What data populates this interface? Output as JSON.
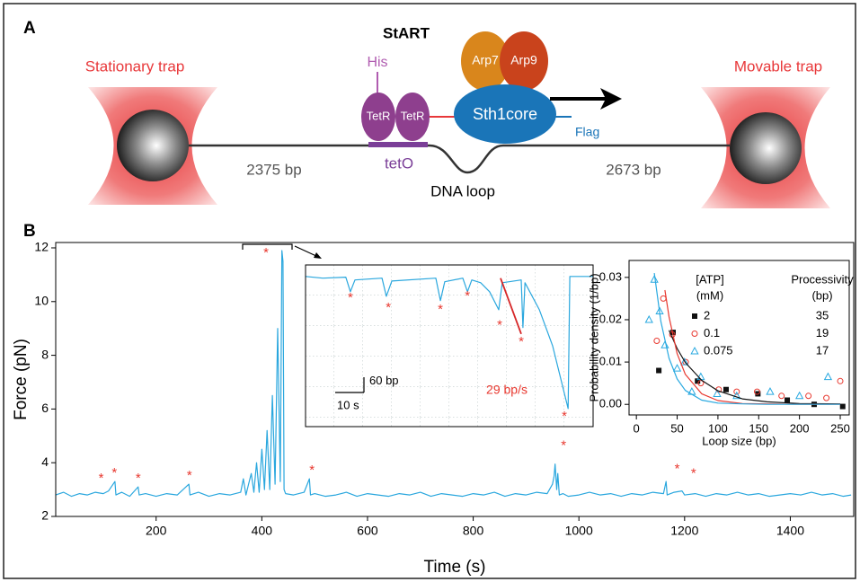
{
  "panel_a": {
    "label": "A",
    "title": "StART",
    "his": "His",
    "tetr_left": "TetR",
    "tetr_right": "TetR",
    "sth1": "Sth1core",
    "arp7": "Arp7",
    "arp9": "Arp9",
    "flag": "Flag",
    "teto": "tetO",
    "stationary": "Stationary trap",
    "movable": "Movable trap",
    "left_dna": "2375 bp",
    "right_dna": "2673 bp",
    "loop": "DNA loop"
  },
  "panel_b_label": "B",
  "chart_data": [
    {
      "type": "line",
      "xlabel": "Time (s)",
      "ylabel": "Force (pN)",
      "xlim": [
        10,
        1520
      ],
      "ylim": [
        2,
        12.2
      ],
      "xticks": [
        200,
        400,
        600,
        800,
        1000,
        1200,
        1400
      ],
      "yticks": [
        2,
        4,
        6,
        8,
        10,
        12
      ],
      "series": [
        {
          "color": "#2aa7de",
          "x": [
            10,
            25,
            40,
            55,
            70,
            85,
            100,
            110,
            122,
            124,
            135,
            150,
            166,
            168,
            180,
            200,
            220,
            240,
            262,
            264,
            280,
            300,
            320,
            340,
            360,
            365,
            370,
            375,
            380,
            385,
            390,
            395,
            400,
            405,
            410,
            415,
            420,
            425,
            430,
            435,
            438,
            440,
            442,
            445,
            460,
            480,
            490,
            492,
            500,
            520,
            540,
            560,
            580,
            600,
            620,
            640,
            660,
            680,
            700,
            720,
            740,
            760,
            780,
            800,
            820,
            840,
            860,
            880,
            900,
            920,
            940,
            950,
            953,
            955,
            958,
            960,
            963,
            970,
            980,
            1000,
            1020,
            1040,
            1060,
            1080,
            1100,
            1120,
            1140,
            1160,
            1165,
            1167,
            1180,
            1195,
            1200,
            1220,
            1240,
            1260,
            1280,
            1300,
            1320,
            1340,
            1360,
            1380,
            1400,
            1420,
            1440,
            1460,
            1480,
            1500,
            1515
          ],
          "values": [
            2.8,
            2.9,
            2.75,
            2.85,
            2.8,
            2.9,
            2.85,
            2.95,
            3.3,
            2.8,
            2.9,
            2.75,
            3.1,
            2.8,
            2.85,
            2.75,
            2.85,
            2.8,
            3.2,
            2.8,
            2.9,
            2.75,
            2.85,
            2.8,
            2.9,
            3.4,
            2.8,
            3.2,
            3.6,
            2.9,
            4.0,
            2.9,
            4.5,
            3.0,
            5.2,
            3.0,
            6.5,
            3.2,
            9.0,
            3.3,
            11.9,
            11.5,
            3.0,
            2.85,
            2.8,
            2.9,
            3.4,
            2.8,
            2.85,
            2.75,
            2.8,
            2.9,
            2.75,
            2.85,
            2.8,
            2.75,
            2.85,
            2.8,
            2.9,
            2.75,
            2.85,
            2.8,
            2.75,
            2.85,
            2.8,
            2.9,
            2.75,
            2.85,
            2.8,
            2.9,
            2.85,
            3.2,
            3.5,
            3.95,
            3.0,
            3.6,
            2.8,
            2.85,
            2.75,
            2.8,
            2.9,
            2.8,
            2.85,
            2.75,
            2.85,
            2.8,
            2.9,
            2.85,
            3.3,
            2.8,
            2.9,
            2.95,
            2.8,
            2.85,
            2.75,
            2.85,
            2.8,
            2.9,
            2.8,
            2.85,
            2.75,
            2.8,
            2.85,
            2.8,
            2.9,
            2.8,
            2.85,
            2.75,
            2.8
          ]
        }
      ],
      "annotations": [
        {
          "text": "*",
          "x": 96,
          "y": 3.41,
          "color": "#e8382f"
        },
        {
          "text": "*",
          "x": 121,
          "y": 3.6,
          "color": "#e8382f"
        },
        {
          "text": "*",
          "x": 166,
          "y": 3.41,
          "color": "#e8382f"
        },
        {
          "text": "*",
          "x": 263,
          "y": 3.51,
          "color": "#e8382f"
        },
        {
          "text": "*",
          "x": 408,
          "y": 11.8,
          "color": "#e8382f"
        },
        {
          "text": "*",
          "x": 495,
          "y": 3.71,
          "color": "#e8382f"
        },
        {
          "text": "*",
          "x": 971,
          "y": 4.62,
          "color": "#e8382f"
        },
        {
          "text": "*",
          "x": 1186,
          "y": 3.75,
          "color": "#e8382f"
        },
        {
          "text": "*",
          "x": 1217,
          "y": 3.58,
          "color": "#e8382f"
        }
      ]
    },
    {
      "type": "line",
      "xlim": [
        0,
        100
      ],
      "ylim": [
        0,
        635
      ],
      "series": [
        {
          "color": "#2aa7de",
          "x": [
            0,
            6,
            14,
            15.6,
            17.2,
            26.6,
            28.1,
            30,
            45.3,
            46.9,
            48.4,
            54.7,
            56.3,
            57.8,
            60.9,
            64,
            67.2,
            68.4,
            75,
            75.6,
            76.3,
            81.3,
            85.9,
            91.3,
            91.9,
            100
          ],
          "values": [
            590,
            583,
            587,
            530,
            576,
            583,
            512,
            572,
            583,
            495,
            569,
            583,
            530,
            576,
            565,
            530,
            459,
            565,
            576,
            389,
            565,
            459,
            318,
            71,
            590,
            590
          ]
        },
        {
          "color": "#d62728",
          "x": [
            67.8,
            75
          ],
          "values": [
            583,
            364
          ]
        }
      ],
      "scale_bars": [
        {
          "label": "60 bp",
          "value": 60,
          "axis": "y"
        },
        {
          "label": "10 s",
          "value": 10,
          "axis": "x"
        }
      ],
      "annotations": [
        {
          "text": "*",
          "x": 15.6,
          "y": 505,
          "color": "#e8382f"
        },
        {
          "text": "*",
          "x": 28.8,
          "y": 466,
          "color": "#e8382f"
        },
        {
          "text": "*",
          "x": 46.9,
          "y": 459,
          "color": "#e8382f"
        },
        {
          "text": "*",
          "x": 56.3,
          "y": 512,
          "color": "#e8382f"
        },
        {
          "text": "*",
          "x": 67.5,
          "y": 396,
          "color": "#e8382f"
        },
        {
          "text": "*",
          "x": 75,
          "y": 332,
          "color": "#e8382f"
        },
        {
          "text": "*",
          "x": 90,
          "y": 39,
          "color": "#e8382f"
        },
        {
          "text": "29 bp/s",
          "x": 70,
          "y": 141,
          "color": "#e8382f"
        }
      ]
    },
    {
      "type": "scatter",
      "xlabel": "Loop size (bp)",
      "ylabel": "Probability density (1/bp)",
      "xlim": [
        -9,
        261
      ],
      "ylim": [
        -0.0025,
        0.034
      ],
      "xticks": [
        0,
        50,
        100,
        150,
        200,
        250
      ],
      "yticks": [
        {
          "value": 0,
          "label": "0.00"
        },
        {
          "value": 0.01,
          "label": "0.01"
        },
        {
          "value": 0.02,
          "label": "0.02"
        },
        {
          "value": 0.03,
          "label": "0.03"
        }
      ],
      "legend_header": [
        "[ATP]",
        "(mM)",
        "Processivity",
        "(bp)"
      ],
      "series": [
        {
          "name": "2",
          "processivity": 35,
          "marker": "square",
          "color": "#111111",
          "x": [
            27.5,
            45,
            75,
            110,
            149,
            185,
            218,
            253
          ],
          "values": [
            0.008,
            0.017,
            0.0055,
            0.0035,
            0.0025,
            0.001,
            0.0,
            -0.0005
          ]
        },
        {
          "name": "0.1",
          "processivity": 19,
          "marker": "circle",
          "color": "#e8382f",
          "x": [
            25,
            33,
            44,
            60.5,
            79,
            101,
            123,
            148,
            178,
            211,
            233,
            250
          ],
          "values": [
            0.015,
            0.025,
            0.0165,
            0.01,
            0.005,
            0.0035,
            0.003,
            0.003,
            0.002,
            0.002,
            0.0015,
            0.0055
          ]
        },
        {
          "name": "0.075",
          "processivity": 17,
          "marker": "triangle",
          "color": "#29a9e0",
          "x": [
            15.5,
            22,
            28.5,
            35,
            50,
            59,
            68,
            79,
            99,
            123,
            164,
            200,
            235
          ],
          "values": [
            0.02,
            0.0295,
            0.022,
            0.014,
            0.0085,
            0.01,
            0.003,
            0.0065,
            0.0025,
            0.002,
            0.003,
            0.002,
            0.0065
          ]
        },
        {
          "color": "#111111",
          "x": [
            40,
            50,
            60,
            80,
            100,
            130,
            160,
            200,
            250
          ],
          "values": [
            0.0175,
            0.0132,
            0.0099,
            0.0057,
            0.0032,
            0.0013,
            0.0006,
            0.0002,
            0.0001
          ]
        },
        {
          "color": "#e8382f",
          "x": [
            35,
            40,
            50,
            60,
            80,
            100,
            130,
            160,
            200,
            250
          ],
          "values": [
            0.027,
            0.0207,
            0.012,
            0.0071,
            0.0025,
            0.0009,
            0.0002,
            0.0001,
            0,
            0
          ]
        },
        {
          "color": "#29a9e0",
          "x": [
            22,
            30,
            40,
            50,
            60,
            80,
            100,
            130,
            160,
            200,
            250
          ],
          "values": [
            0.031,
            0.0196,
            0.0109,
            0.006,
            0.0033,
            0.001,
            0.0003,
            0.0001,
            0,
            0,
            0
          ]
        }
      ]
    }
  ]
}
